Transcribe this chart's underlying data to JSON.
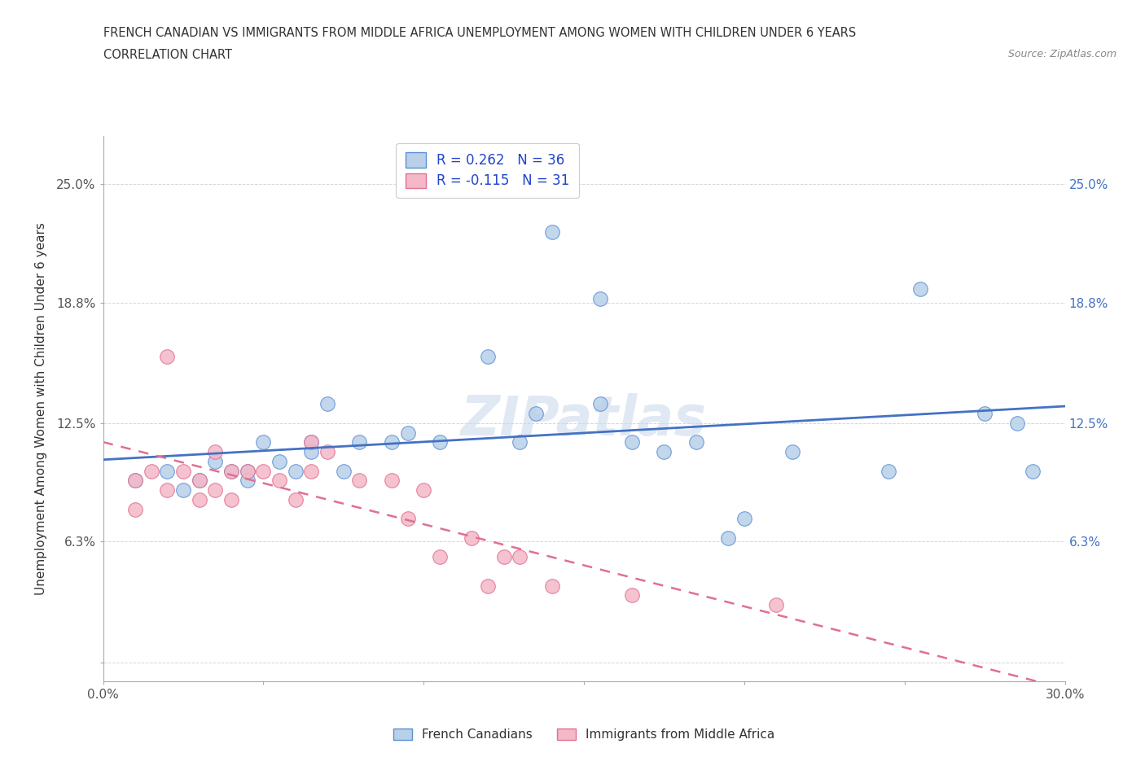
{
  "title_line1": "FRENCH CANADIAN VS IMMIGRANTS FROM MIDDLE AFRICA UNEMPLOYMENT AMONG WOMEN WITH CHILDREN UNDER 6 YEARS",
  "title_line2": "CORRELATION CHART",
  "source": "Source: ZipAtlas.com",
  "ylabel": "Unemployment Among Women with Children Under 6 years",
  "xlim": [
    0.0,
    0.3
  ],
  "ylim": [
    -0.01,
    0.275
  ],
  "yticks": [
    0.0,
    0.063,
    0.125,
    0.188,
    0.25
  ],
  "ytick_labels": [
    "",
    "6.3%",
    "12.5%",
    "18.8%",
    "25.0%"
  ],
  "xticks": [
    0.0,
    0.05,
    0.1,
    0.15,
    0.2,
    0.25,
    0.3
  ],
  "xtick_labels": [
    "0.0%",
    "",
    "",
    "",
    "",
    "",
    "30.0%"
  ],
  "blue_R": 0.262,
  "blue_N": 36,
  "pink_R": -0.115,
  "pink_N": 31,
  "blue_color": "#b8d0e8",
  "blue_edge_color": "#5b8fd4",
  "blue_line_color": "#4472c4",
  "pink_color": "#f4b8c8",
  "pink_edge_color": "#e07090",
  "pink_line_color": "#e07090",
  "watermark": "ZIPatlas",
  "legend_label_blue": "French Canadians",
  "legend_label_pink": "Immigrants from Middle Africa",
  "blue_x": [
    0.01,
    0.02,
    0.025,
    0.03,
    0.035,
    0.04,
    0.045,
    0.045,
    0.05,
    0.055,
    0.06,
    0.065,
    0.065,
    0.07,
    0.075,
    0.08,
    0.09,
    0.095,
    0.105,
    0.12,
    0.13,
    0.135,
    0.14,
    0.155,
    0.155,
    0.165,
    0.175,
    0.185,
    0.195,
    0.2,
    0.215,
    0.245,
    0.255,
    0.275,
    0.285,
    0.29
  ],
  "blue_y": [
    0.095,
    0.1,
    0.09,
    0.095,
    0.105,
    0.1,
    0.1,
    0.095,
    0.115,
    0.105,
    0.1,
    0.115,
    0.11,
    0.135,
    0.1,
    0.115,
    0.115,
    0.12,
    0.115,
    0.16,
    0.115,
    0.13,
    0.225,
    0.135,
    0.19,
    0.115,
    0.11,
    0.115,
    0.065,
    0.075,
    0.11,
    0.1,
    0.195,
    0.13,
    0.125,
    0.1
  ],
  "pink_x": [
    0.01,
    0.01,
    0.015,
    0.02,
    0.02,
    0.025,
    0.03,
    0.03,
    0.035,
    0.035,
    0.04,
    0.04,
    0.045,
    0.05,
    0.055,
    0.06,
    0.065,
    0.065,
    0.07,
    0.08,
    0.09,
    0.095,
    0.1,
    0.105,
    0.115,
    0.12,
    0.125,
    0.13,
    0.14,
    0.165,
    0.21
  ],
  "pink_y": [
    0.095,
    0.08,
    0.1,
    0.16,
    0.09,
    0.1,
    0.095,
    0.085,
    0.11,
    0.09,
    0.1,
    0.085,
    0.1,
    0.1,
    0.095,
    0.085,
    0.115,
    0.1,
    0.11,
    0.095,
    0.095,
    0.075,
    0.09,
    0.055,
    0.065,
    0.04,
    0.055,
    0.055,
    0.04,
    0.035,
    0.03
  ]
}
